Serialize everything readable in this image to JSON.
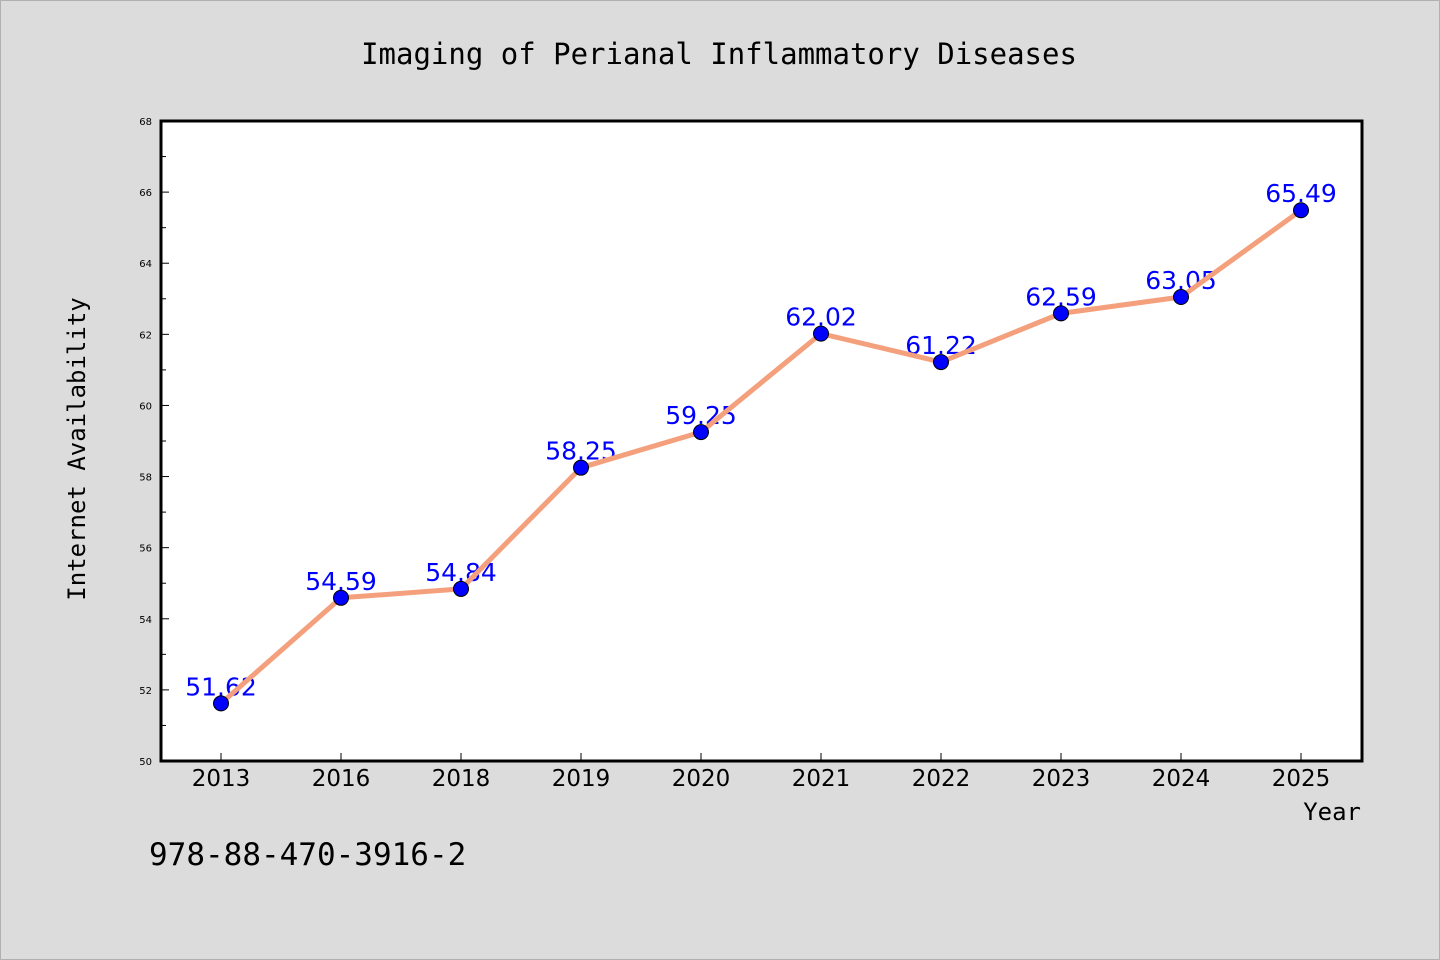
{
  "chart_data": {
    "type": "line",
    "title": "Imaging of Perianal Inflammatory Diseases",
    "xlabel": "Year",
    "ylabel": "Internet Availability",
    "categories": [
      "2013",
      "2016",
      "2018",
      "2019",
      "2020",
      "2021",
      "2022",
      "2023",
      "2024",
      "2025"
    ],
    "series": [
      {
        "values": [
          51.62,
          54.59,
          54.84,
          58.25,
          59.25,
          62.02,
          61.22,
          62.59,
          63.05,
          65.49
        ],
        "line_color": "#f4a07c",
        "marker_color": "#0000ff"
      }
    ],
    "data_labels": [
      "51.62",
      "54.59",
      "54.84",
      "58.25",
      "59.25",
      "62.02",
      "61.22",
      "62.59",
      "63.05",
      "65.49"
    ],
    "ylim": [
      50,
      68
    ],
    "yticks": [
      "50",
      "52",
      "54",
      "56",
      "58",
      "60",
      "62",
      "64",
      "66",
      "68"
    ],
    "grid": false,
    "legend": "none"
  },
  "footer": {
    "isbn": "978-88-470-3916-2"
  },
  "colors": {
    "background": "#dcdcdc",
    "plot_area": "#ffffff",
    "line": "#f4a07c",
    "marker": "#0000ff",
    "data_label": "#0000ff"
  }
}
